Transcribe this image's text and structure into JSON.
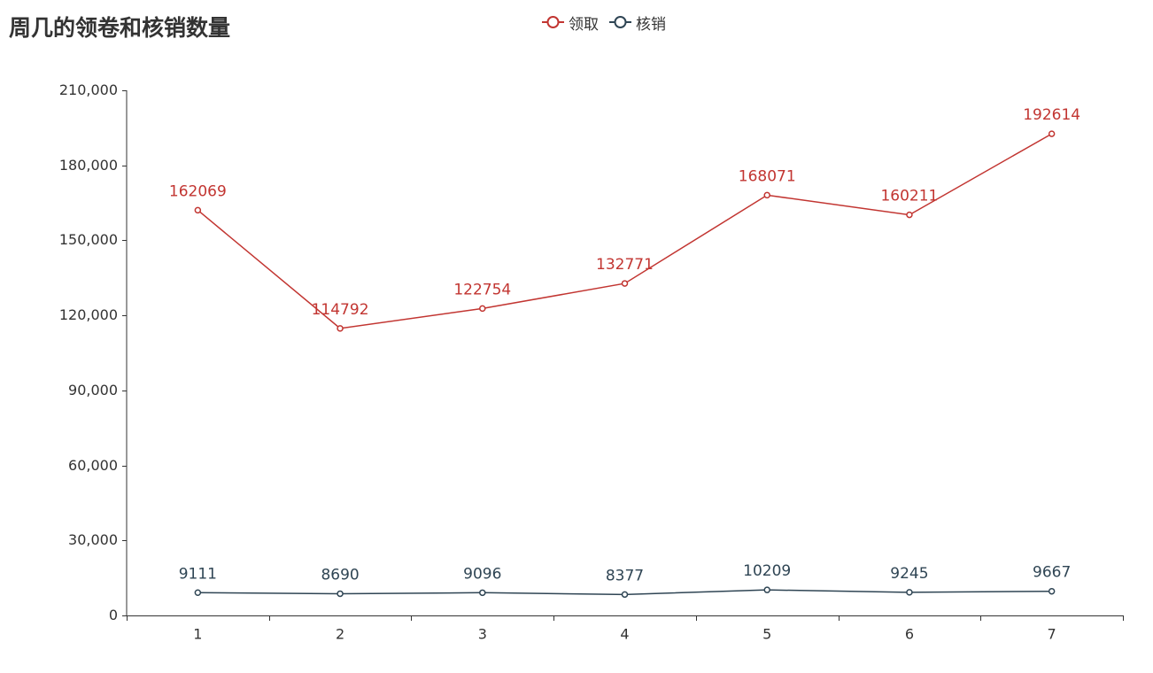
{
  "chart_data": {
    "type": "line",
    "title": "周几的领卷和核销数量",
    "categories": [
      "1",
      "2",
      "3",
      "4",
      "5",
      "6",
      "7"
    ],
    "series": [
      {
        "name": "领取",
        "color": "#c23531",
        "values": [
          162069,
          114792,
          122754,
          132771,
          168071,
          160211,
          192614
        ]
      },
      {
        "name": "核销",
        "color": "#2f4554",
        "values": [
          9111,
          8690,
          9096,
          8377,
          10209,
          9245,
          9667
        ]
      }
    ],
    "ylim": [
      0,
      210000
    ],
    "yticks": [
      "0",
      "30,000",
      "60,000",
      "90,000",
      "120,000",
      "150,000",
      "180,000",
      "210,000"
    ],
    "xlabel": "",
    "ylabel": "",
    "grid": false,
    "legend_position": "top-center",
    "data_labels": true
  }
}
